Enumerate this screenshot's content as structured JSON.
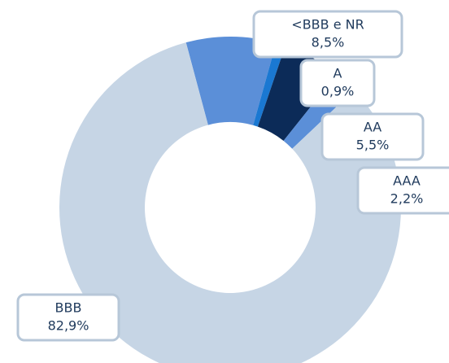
{
  "chart_data": {
    "type": "donut",
    "categories": [
      "<BBB e NR",
      "A",
      "AA",
      "AAA",
      "BBB"
    ],
    "values": [
      8.5,
      0.9,
      5.5,
      2.2,
      82.9
    ],
    "value_labels": [
      "8,5%",
      "0,9%",
      "5,5%",
      "2,2%",
      "82,9%"
    ],
    "colors": [
      "#5b8fd8",
      "#1a78d2",
      "#0c2b58",
      "#5b8fd8",
      "#c6d5e5"
    ]
  }
}
